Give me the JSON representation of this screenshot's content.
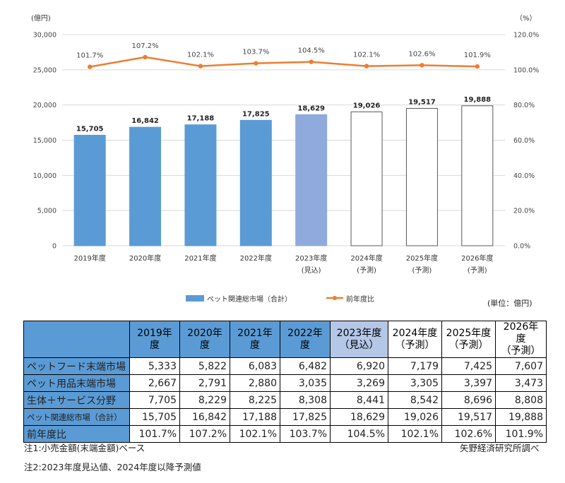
{
  "chart_data": {
    "type": "bar",
    "categories": [
      "2019年度",
      "2020年度",
      "2021年度",
      "2022年度",
      "2023年度",
      "2024年度",
      "2025年度",
      "2026年度"
    ],
    "category_sublabels": [
      "",
      "",
      "",
      "",
      "(見込)",
      "(予測)",
      "(予測)",
      "(予測)"
    ],
    "series": [
      {
        "name": "ペット関連総市場（合計）",
        "type": "bar",
        "axis": "left",
        "values": [
          15705,
          16842,
          17188,
          17825,
          18629,
          19026,
          19517,
          19888
        ],
        "labels": [
          "15,705",
          "16,842",
          "17,188",
          "17,825",
          "18,629",
          "19,026",
          "19,517",
          "19,888"
        ],
        "styles": [
          "actual",
          "actual",
          "actual",
          "actual",
          "estimate",
          "forecast",
          "forecast",
          "forecast"
        ]
      },
      {
        "name": "前年度比",
        "type": "line",
        "axis": "right",
        "values": [
          101.7,
          107.2,
          102.1,
          103.7,
          104.5,
          102.1,
          102.6,
          101.9
        ],
        "labels": [
          "101.7%",
          "107.2%",
          "102.1%",
          "103.7%",
          "104.5%",
          "102.1%",
          "102.6%",
          "101.9%"
        ]
      }
    ],
    "left_axis": {
      "unit": "(億円)",
      "ylim": [
        0,
        30000
      ],
      "ticks": [
        "0",
        "5,000",
        "10,000",
        "15,000",
        "20,000",
        "25,000",
        "30,000"
      ]
    },
    "right_axis": {
      "unit": "（%）",
      "ylim": [
        0,
        120
      ],
      "ticks": [
        "0.0%",
        "20.0%",
        "40.0%",
        "60.0%",
        "80.0%",
        "100.0%",
        "120.0%"
      ]
    },
    "legend_position": "bottom",
    "grid": true
  },
  "colors": {
    "actual": "#5b9bd5",
    "estimate": "#8faadc",
    "forecast": "#ffffff",
    "line": "#ed7d31",
    "grid": "#d9d9d9",
    "header": "#5b9bd5",
    "header_estimate": "#b4c7e7"
  },
  "unit_note": "(単位：億円)",
  "table": {
    "headers": [
      {
        "line1": "2019年度",
        "line2": ""
      },
      {
        "line1": "2020年度",
        "line2": ""
      },
      {
        "line1": "2021年度",
        "line2": ""
      },
      {
        "line1": "2022年度",
        "line2": ""
      },
      {
        "line1": "2023年度",
        "line2": "（見込）"
      },
      {
        "line1": "2024年度",
        "line2": "（予測）"
      },
      {
        "line1": "2025年度",
        "line2": "（予測）"
      },
      {
        "line1": "2026年度",
        "line2": "（予測）"
      }
    ],
    "rows": [
      {
        "label": "ペットフード末端市場",
        "values": [
          "5,333",
          "5,822",
          "6,083",
          "6,482",
          "6,920",
          "7,179",
          "7,425",
          "7,607"
        ]
      },
      {
        "label": "ペット用品末端市場",
        "values": [
          "2,667",
          "2,791",
          "2,880",
          "3,035",
          "3,269",
          "3,305",
          "3,397",
          "3,473"
        ]
      },
      {
        "label": "生体＋サービス分野",
        "values": [
          "7,705",
          "8,229",
          "8,225",
          "8,308",
          "8,441",
          "8,542",
          "8,696",
          "8,808"
        ]
      },
      {
        "label": "ペット関連総市場（合計）",
        "values": [
          "15,705",
          "16,842",
          "17,188",
          "17,825",
          "18,629",
          "19,026",
          "19,517",
          "19,888"
        ]
      },
      {
        "label": "前年度比",
        "values": [
          "101.7%",
          "107.2%",
          "102.1%",
          "103.7%",
          "104.5%",
          "102.1%",
          "102.6%",
          "101.9%"
        ]
      }
    ]
  },
  "notes": {
    "note1": "注1:小売金額(末端金額)ベース",
    "note2": "注2:2023年度見込値、2024年度以降予測値",
    "source": "矢野経済研究所調べ"
  }
}
